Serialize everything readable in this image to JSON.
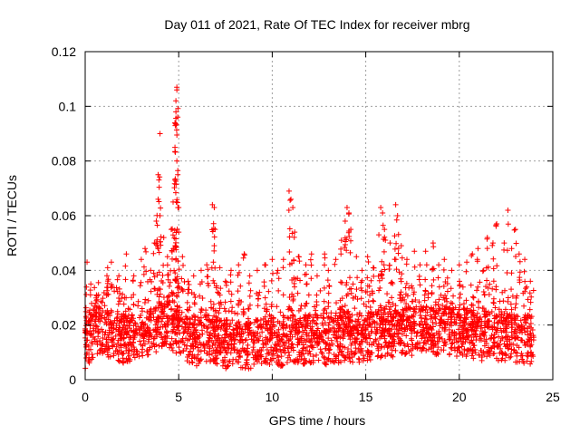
{
  "chart_data": {
    "type": "scatter",
    "title": "Day 011 of 2021, Rate Of TEC Index for receiver mbrg",
    "xlabel": "GPS time / hours",
    "ylabel": "ROTI / TECUs",
    "xlim": [
      0,
      25
    ],
    "ylim": [
      0,
      0.12
    ],
    "xticks": [
      "0",
      "5",
      "10",
      "15",
      "20",
      "25"
    ],
    "yticks": [
      "0",
      "0.02",
      "0.04",
      "0.06",
      "0.08",
      "0.1",
      "0.12"
    ],
    "grid": true,
    "marker": "plus",
    "color": "#ff0000",
    "base_points": [
      [
        0.0,
        0.011
      ],
      [
        0.5,
        0.018
      ],
      [
        1.0,
        0.016
      ],
      [
        1.5,
        0.017
      ],
      [
        2.0,
        0.015
      ],
      [
        2.5,
        0.016
      ],
      [
        3.0,
        0.016
      ],
      [
        3.5,
        0.018
      ],
      [
        4.0,
        0.02
      ],
      [
        4.5,
        0.02
      ],
      [
        5.0,
        0.018
      ],
      [
        5.5,
        0.015
      ],
      [
        6.0,
        0.014
      ],
      [
        6.5,
        0.015
      ],
      [
        7.0,
        0.015
      ],
      [
        7.5,
        0.013
      ],
      [
        8.0,
        0.014
      ],
      [
        8.5,
        0.013
      ],
      [
        9.0,
        0.013
      ],
      [
        9.5,
        0.014
      ],
      [
        10.0,
        0.014
      ],
      [
        10.5,
        0.014
      ],
      [
        11.0,
        0.015
      ],
      [
        11.5,
        0.014
      ],
      [
        12.0,
        0.015
      ],
      [
        12.5,
        0.015
      ],
      [
        13.0,
        0.014
      ],
      [
        13.5,
        0.015
      ],
      [
        14.0,
        0.016
      ],
      [
        14.5,
        0.015
      ],
      [
        15.0,
        0.016
      ],
      [
        15.5,
        0.016
      ],
      [
        16.0,
        0.017
      ],
      [
        16.5,
        0.017
      ],
      [
        17.0,
        0.017
      ],
      [
        17.5,
        0.018
      ],
      [
        18.0,
        0.018
      ],
      [
        18.5,
        0.018
      ],
      [
        19.0,
        0.018
      ],
      [
        19.5,
        0.018
      ],
      [
        20.0,
        0.017
      ],
      [
        20.5,
        0.017
      ],
      [
        21.0,
        0.016
      ],
      [
        21.5,
        0.016
      ],
      [
        22.0,
        0.016
      ],
      [
        22.5,
        0.016
      ],
      [
        23.0,
        0.015
      ],
      [
        23.5,
        0.015
      ],
      [
        24.0,
        0.014
      ]
    ],
    "peak_points": [
      [
        0.1,
        0.043
      ],
      [
        0.3,
        0.035
      ],
      [
        0.6,
        0.031
      ],
      [
        1.2,
        0.041
      ],
      [
        1.4,
        0.043
      ],
      [
        1.8,
        0.038
      ],
      [
        2.1,
        0.03
      ],
      [
        2.2,
        0.046
      ],
      [
        2.6,
        0.038
      ],
      [
        3.0,
        0.044
      ],
      [
        3.2,
        0.048
      ],
      [
        3.5,
        0.04
      ],
      [
        3.7,
        0.05
      ],
      [
        3.8,
        0.058
      ],
      [
        3.9,
        0.066
      ],
      [
        3.9,
        0.075
      ],
      [
        4.0,
        0.09
      ],
      [
        4.0,
        0.06
      ],
      [
        4.2,
        0.052
      ],
      [
        4.4,
        0.045
      ],
      [
        4.6,
        0.055
      ],
      [
        4.7,
        0.065
      ],
      [
        4.8,
        0.073
      ],
      [
        4.8,
        0.085
      ],
      [
        4.8,
        0.094
      ],
      [
        4.85,
        0.098
      ],
      [
        4.85,
        0.102
      ],
      [
        4.9,
        0.106
      ],
      [
        4.9,
        0.107
      ],
      [
        4.9,
        0.08
      ],
      [
        4.95,
        0.075
      ],
      [
        5.0,
        0.063
      ],
      [
        5.0,
        0.054
      ],
      [
        5.2,
        0.045
      ],
      [
        5.5,
        0.036
      ],
      [
        5.8,
        0.038
      ],
      [
        6.2,
        0.04
      ],
      [
        6.5,
        0.042
      ],
      [
        6.8,
        0.064
      ],
      [
        6.9,
        0.063
      ],
      [
        6.9,
        0.049
      ],
      [
        7.2,
        0.041
      ],
      [
        7.5,
        0.036
      ],
      [
        7.8,
        0.04
      ],
      [
        8.2,
        0.042
      ],
      [
        8.5,
        0.046
      ],
      [
        8.8,
        0.038
      ],
      [
        9.2,
        0.04
      ],
      [
        9.6,
        0.042
      ],
      [
        10.0,
        0.044
      ],
      [
        10.3,
        0.04
      ],
      [
        10.6,
        0.044
      ],
      [
        10.9,
        0.069
      ],
      [
        11.0,
        0.066
      ],
      [
        11.1,
        0.063
      ],
      [
        11.2,
        0.054
      ],
      [
        11.4,
        0.045
      ],
      [
        11.8,
        0.042
      ],
      [
        12.1,
        0.046
      ],
      [
        12.4,
        0.038
      ],
      [
        12.8,
        0.046
      ],
      [
        13.0,
        0.04
      ],
      [
        13.4,
        0.044
      ],
      [
        13.7,
        0.051
      ],
      [
        13.9,
        0.058
      ],
      [
        14.0,
        0.063
      ],
      [
        14.1,
        0.061
      ],
      [
        14.2,
        0.055
      ],
      [
        14.5,
        0.045
      ],
      [
        14.8,
        0.04
      ],
      [
        15.1,
        0.045
      ],
      [
        15.4,
        0.041
      ],
      [
        15.7,
        0.053
      ],
      [
        15.8,
        0.063
      ],
      [
        15.9,
        0.061
      ],
      [
        16.0,
        0.055
      ],
      [
        16.3,
        0.05
      ],
      [
        16.6,
        0.064
      ],
      [
        16.7,
        0.06
      ],
      [
        16.9,
        0.049
      ],
      [
        17.2,
        0.044
      ],
      [
        17.6,
        0.047
      ],
      [
        17.9,
        0.042
      ],
      [
        18.2,
        0.047
      ],
      [
        18.6,
        0.05
      ],
      [
        18.9,
        0.042
      ],
      [
        19.2,
        0.044
      ],
      [
        19.6,
        0.04
      ],
      [
        20.0,
        0.042
      ],
      [
        20.4,
        0.043
      ],
      [
        20.7,
        0.046
      ],
      [
        21.0,
        0.048
      ],
      [
        21.3,
        0.04
      ],
      [
        21.5,
        0.052
      ],
      [
        21.8,
        0.05
      ],
      [
        22.0,
        0.057
      ],
      [
        22.4,
        0.05
      ],
      [
        22.6,
        0.062
      ],
      [
        22.8,
        0.048
      ],
      [
        23.0,
        0.055
      ],
      [
        23.2,
        0.046
      ],
      [
        23.5,
        0.044
      ],
      [
        23.8,
        0.036
      ]
    ]
  }
}
